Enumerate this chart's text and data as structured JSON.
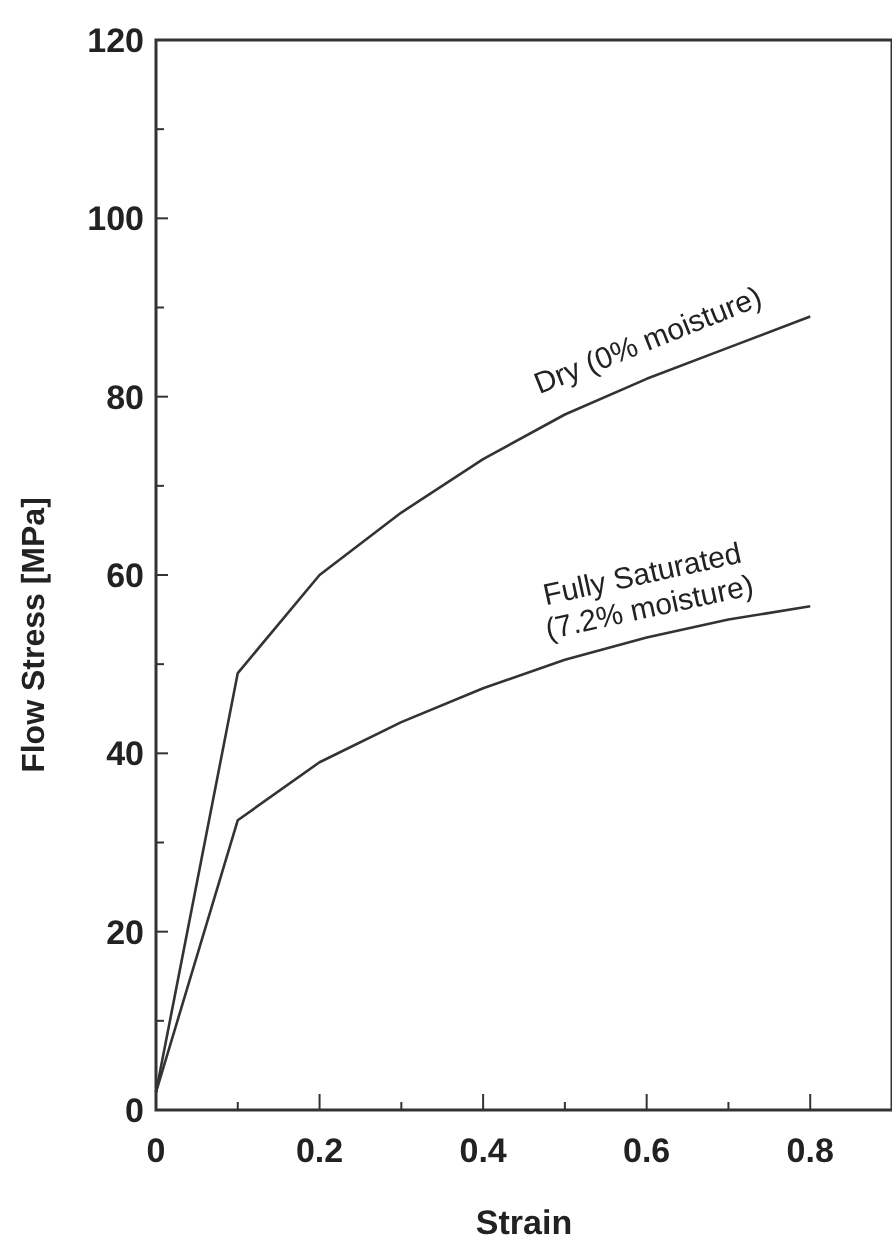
{
  "chart_data": {
    "type": "line",
    "xlabel": "Strain",
    "ylabel": "Flow Stress [MPa]",
    "x": [
      0,
      0.1,
      0.2,
      0.3,
      0.4,
      0.5,
      0.6,
      0.7,
      0.8
    ],
    "series": [
      {
        "name": "Dry (0% moisture)",
        "color": "#333333",
        "values": [
          2,
          49,
          60,
          67,
          73,
          78,
          82,
          85.5,
          89
        ]
      },
      {
        "name": "Fully Saturated\n(7.2% moisture)",
        "color": "#333333",
        "values": [
          2,
          32.5,
          39,
          43.5,
          47.3,
          50.5,
          53,
          55,
          56.5
        ]
      }
    ],
    "xlim": [
      0,
      0.9
    ],
    "ylim": [
      0,
      120
    ],
    "xticks": [
      0,
      {
        "value": 0.1,
        "label": null
      },
      0.2,
      {
        "value": 0.3,
        "label": null
      },
      0.4,
      {
        "value": 0.5,
        "label": null
      },
      0.6,
      {
        "value": 0.7,
        "label": null
      },
      0.8
    ],
    "yticks": [
      0,
      {
        "value": 10,
        "label": null
      },
      20,
      {
        "value": 30,
        "label": null
      },
      40,
      {
        "value": 50,
        "label": null
      },
      60,
      {
        "value": 70,
        "label": null
      },
      80,
      {
        "value": 90,
        "label": null
      },
      100,
      {
        "value": 110,
        "label": null
      },
      120
    ],
    "grid": false,
    "marker": "none",
    "line_style": "solid"
  }
}
